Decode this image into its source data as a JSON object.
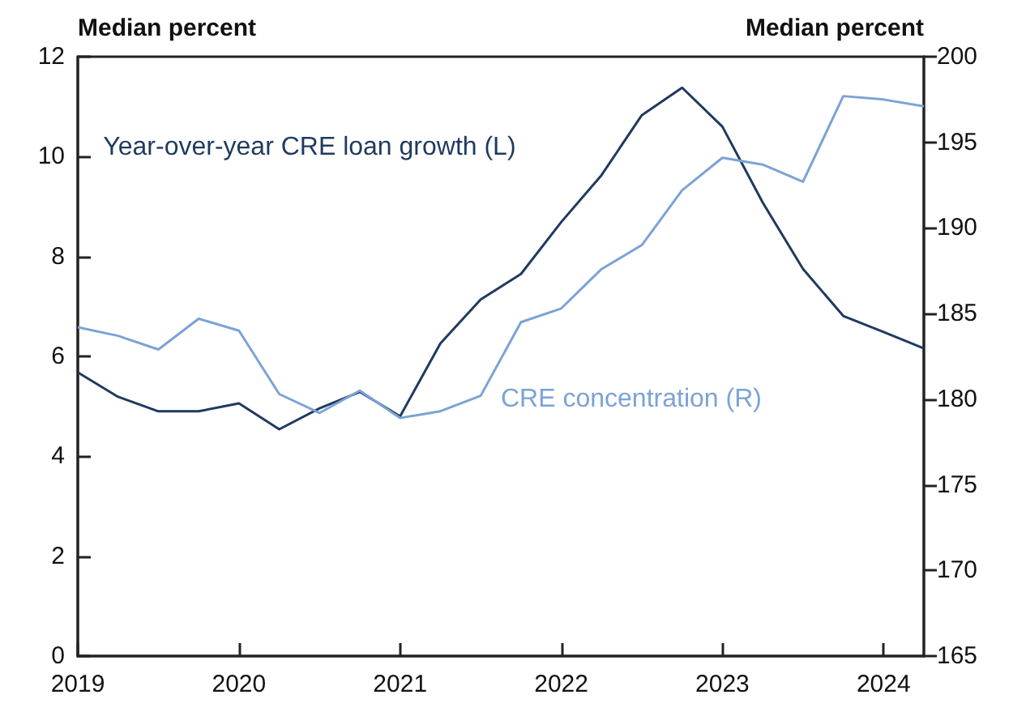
{
  "chart_data": {
    "type": "line",
    "ylabel": "Median percent",
    "y2label": "Median percent",
    "x": [
      2019,
      2019.25,
      2019.5,
      2019.75,
      2020,
      2020.25,
      2020.5,
      2020.75,
      2021,
      2021.25,
      2021.5,
      2021.75,
      2022,
      2022.25,
      2022.5,
      2022.75,
      2023,
      2023.25,
      2023.5,
      2023.75,
      2024,
      2024.25
    ],
    "series": [
      {
        "name": "Year-over-year CRE loan growth (L)",
        "color": "#1f3a5f",
        "values": [
          5.68,
          5.19,
          4.9,
          4.9,
          5.06,
          4.54,
          4.96,
          5.29,
          4.8,
          6.26,
          7.14,
          7.65,
          8.69,
          9.63,
          10.83,
          11.38,
          10.6,
          9.08,
          7.75,
          6.81,
          6.49,
          6.16
        ]
      },
      {
        "name": "CRE concentration (R)",
        "color": "#7ba3d6",
        "axis": "y2",
        "values": [
          184.2,
          183.7,
          182.9,
          184.7,
          184.0,
          180.3,
          179.2,
          180.5,
          178.9,
          179.3,
          180.2,
          184.5,
          185.3,
          187.6,
          189.0,
          192.2,
          194.1,
          193.7,
          192.7,
          197.7,
          197.5,
          197.1
        ]
      }
    ],
    "xlim": [
      2019,
      2024.25
    ],
    "xticks": [
      2019,
      2020,
      2021,
      2022,
      2023,
      2024
    ],
    "ylim": [
      0,
      12
    ],
    "yticks": [
      0,
      2,
      4,
      6,
      8,
      10,
      12
    ],
    "y2lim": [
      165,
      200
    ],
    "y2ticks": [
      165,
      170,
      175,
      180,
      185,
      190,
      195,
      200
    ],
    "grid": false,
    "legend": false,
    "marker": "none",
    "line_style": "solid"
  }
}
